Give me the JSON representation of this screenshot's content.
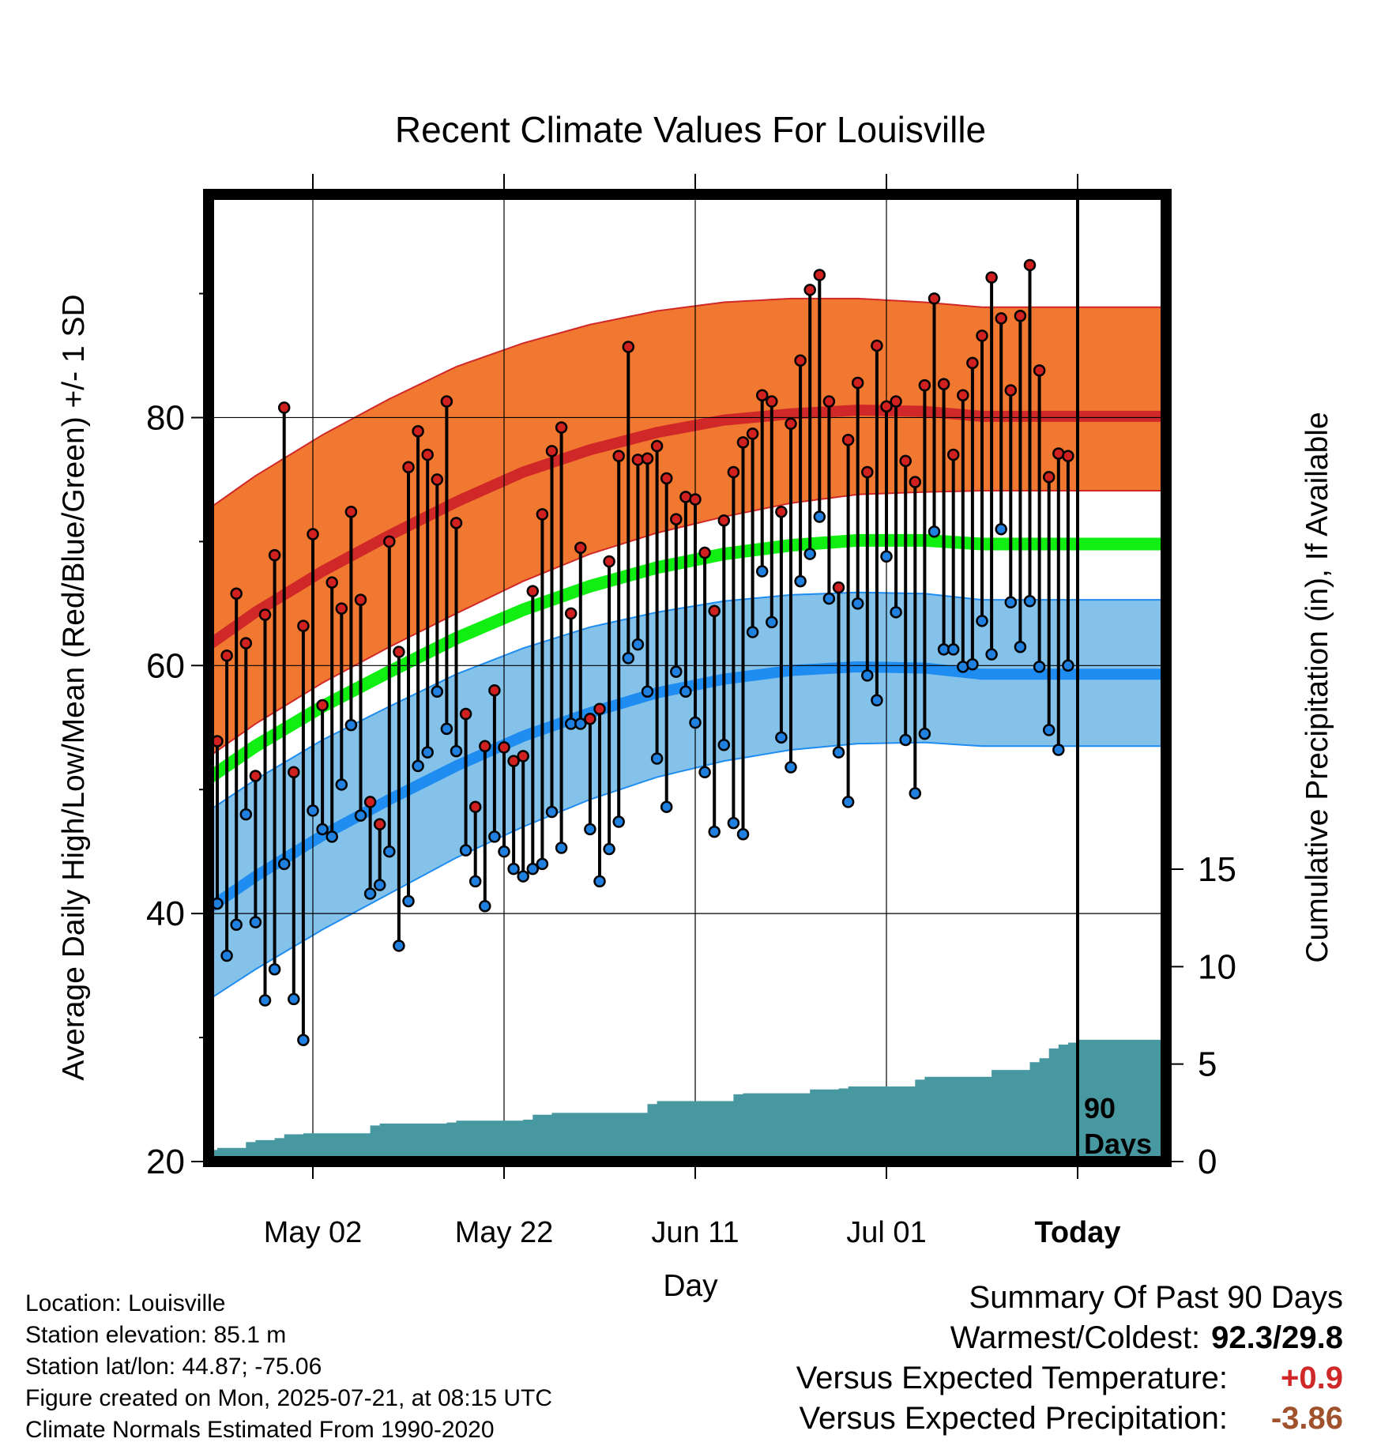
{
  "chart_data": {
    "type": "line",
    "title": "Recent Climate Values For Louisville",
    "xlabel": "Day",
    "ylabel": "Average Daily High/Low/Mean (Red/Blue/Green) +/- 1 SD",
    "y2label": "Cumulative Precipitation (in), If Available",
    "ylim": [
      20,
      98
    ],
    "y2lim": [
      0,
      15
    ],
    "yticks": [
      20,
      40,
      60,
      80
    ],
    "y2ticks": [
      0,
      5,
      10,
      15
    ],
    "x_ticks": [
      {
        "label": "May 02",
        "bold": false
      },
      {
        "label": "May 22",
        "bold": false
      },
      {
        "label": "Jun 11",
        "bold": false
      },
      {
        "label": "Jul 01",
        "bold": false
      },
      {
        "label": "Today",
        "bold": true
      }
    ],
    "grid": true,
    "today_marker_label": [
      "90",
      "Days"
    ],
    "normals": {
      "high_mean": [
        56.5,
        60.5,
        64.3,
        67.6,
        70.5,
        73.2,
        75.6,
        77.4,
        78.8,
        79.8,
        80.3,
        80.6,
        80.5,
        80.1
      ],
      "high_sd_upper": [
        67.5,
        71.5,
        75.3,
        78.6,
        81.5,
        84.1,
        86.0,
        87.5,
        88.6,
        89.3,
        89.6,
        89.6,
        89.3,
        88.9
      ],
      "high_sd_lower": [
        47.5,
        51.5,
        55.3,
        58.6,
        61.5,
        64.2,
        66.8,
        69.0,
        70.7,
        72.0,
        73.1,
        73.8,
        74.0,
        74.1
      ],
      "mean": [
        46.0,
        49.8,
        53.5,
        56.7,
        59.5,
        62.2,
        64.5,
        66.4,
        67.9,
        69.0,
        69.7,
        70.1,
        70.1,
        69.8
      ],
      "low_mean": [
        35.5,
        39.3,
        43.0,
        46.3,
        49.2,
        51.9,
        54.3,
        56.2,
        57.8,
        58.9,
        59.6,
        59.9,
        59.8,
        59.3
      ],
      "low_sd_upper": [
        43.5,
        47.2,
        50.8,
        54.0,
        56.7,
        59.3,
        61.4,
        63.1,
        64.3,
        65.2,
        65.7,
        65.9,
        65.8,
        65.3
      ],
      "low_sd_lower": [
        28.5,
        32.0,
        35.5,
        38.7,
        41.6,
        44.5,
        47.0,
        49.2,
        51.0,
        52.3,
        53.2,
        53.7,
        53.8,
        53.5
      ],
      "day_offsets": [
        -10,
        -3,
        4,
        11,
        18,
        25,
        32,
        39,
        46,
        53,
        60,
        67,
        74,
        80
      ]
    },
    "daily_high": [
      53.9,
      60.8,
      65.8,
      61.8,
      51.1,
      64.1,
      68.9,
      80.8,
      51.4,
      63.2,
      70.6,
      56.8,
      66.7,
      64.6,
      72.4,
      65.3,
      49.0,
      47.2,
      70.0,
      61.1,
      76.0,
      78.9,
      77.0,
      75.0,
      81.3,
      71.5,
      56.1,
      48.6,
      53.5,
      58.0,
      53.4,
      52.3,
      52.7,
      66.0,
      72.2,
      77.3,
      79.2,
      64.2,
      69.5,
      55.7,
      56.5,
      68.4,
      76.9,
      85.7,
      76.6,
      76.7,
      77.7,
      75.1,
      71.8,
      73.6,
      73.4,
      69.1,
      64.4,
      71.7,
      75.6,
      78.0,
      78.7,
      81.8,
      81.3,
      72.4,
      79.5,
      84.6,
      90.3,
      91.5,
      81.3,
      66.3,
      78.2,
      82.8,
      75.6,
      85.8,
      80.9,
      81.3,
      76.5,
      74.8,
      82.6,
      89.6,
      82.7,
      77.0,
      81.8,
      84.4,
      86.6,
      91.3,
      88.0,
      82.2,
      88.2,
      92.3,
      83.8,
      75.2,
      77.1,
      76.9
    ],
    "daily_low": [
      40.8,
      36.6,
      39.1,
      48.0,
      39.3,
      33.0,
      35.5,
      44.0,
      33.1,
      29.8,
      48.3,
      46.8,
      46.2,
      50.4,
      55.2,
      47.9,
      41.6,
      42.3,
      45.0,
      37.4,
      41.0,
      51.9,
      53.0,
      57.9,
      54.9,
      53.1,
      45.1,
      42.6,
      40.6,
      46.2,
      45.0,
      43.6,
      43.0,
      43.6,
      44.0,
      48.2,
      45.3,
      55.3,
      55.3,
      46.8,
      42.6,
      45.2,
      47.4,
      60.6,
      61.7,
      57.9,
      52.5,
      48.6,
      59.5,
      57.9,
      55.4,
      51.4,
      46.6,
      53.6,
      47.3,
      46.4,
      62.7,
      67.6,
      63.5,
      54.2,
      51.8,
      66.8,
      69.0,
      72.0,
      65.4,
      53.0,
      49.0,
      65.0,
      59.2,
      57.2,
      68.8,
      64.3,
      54.0,
      49.7,
      54.5,
      70.8,
      61.3,
      61.3,
      59.9,
      60.1,
      63.6,
      60.9,
      71.0,
      65.1,
      61.5,
      65.2,
      59.9,
      54.8,
      53.2,
      60.0
    ],
    "cumulative_precip_steps": [
      [
        -10,
        0.0
      ],
      [
        -6,
        0.0
      ],
      [
        -5,
        0.3
      ],
      [
        -4,
        0.4
      ],
      [
        -3,
        0.5
      ],
      [
        -2,
        0.6
      ],
      [
        0,
        0.7
      ],
      [
        2,
        0.7
      ],
      [
        3,
        1.0
      ],
      [
        4,
        1.1
      ],
      [
        6,
        1.2
      ],
      [
        7,
        1.4
      ],
      [
        9,
        1.45
      ],
      [
        15,
        1.45
      ],
      [
        16,
        1.85
      ],
      [
        17,
        1.95
      ],
      [
        24,
        2.0
      ],
      [
        25,
        2.1
      ],
      [
        32,
        2.15
      ],
      [
        33,
        2.4
      ],
      [
        35,
        2.5
      ],
      [
        44,
        2.5
      ],
      [
        45,
        2.95
      ],
      [
        46,
        3.1
      ],
      [
        53,
        3.1
      ],
      [
        54,
        3.45
      ],
      [
        55,
        3.5
      ],
      [
        61,
        3.5
      ],
      [
        62,
        3.7
      ],
      [
        65,
        3.75
      ],
      [
        66,
        3.85
      ],
      [
        72,
        3.85
      ],
      [
        73,
        4.2
      ],
      [
        74,
        4.35
      ],
      [
        80,
        4.35
      ],
      [
        81,
        4.7
      ],
      [
        84,
        4.7
      ],
      [
        85,
        5.1
      ],
      [
        86,
        5.3
      ],
      [
        87,
        5.8
      ],
      [
        88,
        6.0
      ],
      [
        89,
        6.1
      ],
      [
        90,
        6.25
      ],
      [
        100,
        6.25
      ]
    ]
  },
  "footer": {
    "location": "Location: Louisville",
    "elevation": "Station elevation: 85.1 m",
    "latlon": "Station lat/lon: 44.87; -75.06",
    "created": "Figure created on Mon, 2025-07-21, at 08:15 UTC",
    "normals": "Climate Normals Estimated From 1990-2020"
  },
  "summary": {
    "heading": "Summary Of Past 90 Days",
    "warmest_label": "Warmest/Coldest:",
    "warmest_value": "92.3/29.8",
    "temp_label": "Versus Expected Temperature:",
    "temp_value": "+0.9",
    "precip_label": "Versus Expected Precipitation:",
    "precip_value": "-3.86"
  },
  "colors": {
    "high_band": "#f07830",
    "high_line": "#d02828",
    "low_band": "#84c2ea",
    "low_line": "#1e8cf0",
    "mean_line": "#11ee11",
    "precip_fill": "#4898a2",
    "high_dot": "#d02020",
    "low_dot": "#2080e0",
    "temp_anomaly": "#d02828",
    "precip_anomaly": "#a0522d"
  }
}
